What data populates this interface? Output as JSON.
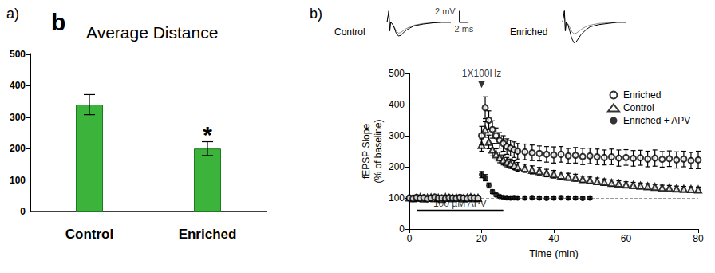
{
  "chart_data": [
    {
      "type": "bar",
      "panel": "a)",
      "tag": "b",
      "title": "Average Distance",
      "categories": [
        "Control",
        "Enriched"
      ],
      "values": [
        340,
        200
      ],
      "errors": [
        32,
        22
      ],
      "color": "#3cb43c",
      "annotations": [
        {
          "category": "Enriched",
          "text": "*"
        }
      ],
      "ylim": [
        0,
        500
      ],
      "yticks": [
        0,
        100,
        200,
        300,
        400,
        500
      ],
      "grid": false
    },
    {
      "type": "line",
      "panel": "b)",
      "x_label": "Time (min)",
      "y_label": "fEPSP Slope\n(% of baseline)",
      "xlim": [
        0,
        80
      ],
      "xticks": [
        0,
        20,
        40,
        60,
        80
      ],
      "ylim": [
        0,
        500
      ],
      "yticks": [
        0,
        100,
        200,
        300,
        400,
        500
      ],
      "grid": false,
      "legend": "top-right",
      "series": [
        {
          "name": "Enriched",
          "color": "#000000",
          "marker": "open_circle",
          "line_style": "none",
          "x": [
            0,
            1,
            2,
            3,
            4,
            5,
            6,
            7,
            8,
            9,
            10,
            11,
            12,
            13,
            14,
            15,
            16,
            17,
            18,
            19,
            20,
            21,
            22,
            23,
            24,
            25,
            26,
            27,
            28,
            29,
            30,
            32,
            34,
            36,
            38,
            40,
            42,
            44,
            46,
            48,
            50,
            52,
            54,
            56,
            58,
            60,
            62,
            64,
            66,
            68,
            70,
            72,
            74,
            76,
            78,
            80
          ],
          "values": [
            100,
            98,
            102,
            99,
            101,
            97,
            100,
            103,
            99,
            100,
            98,
            101,
            100,
            99,
            102,
            100,
            98,
            101,
            100,
            99,
            300,
            390,
            350,
            320,
            300,
            285,
            275,
            265,
            260,
            255,
            250,
            248,
            245,
            243,
            240,
            238,
            240,
            235,
            237,
            233,
            235,
            232,
            230,
            232,
            228,
            230,
            227,
            229,
            225,
            228,
            224,
            226,
            222,
            225,
            220,
            222
          ],
          "errors": [
            5,
            5,
            5,
            5,
            5,
            5,
            5,
            5,
            5,
            5,
            5,
            5,
            5,
            5,
            5,
            5,
            5,
            5,
            5,
            5,
            30,
            35,
            30,
            28,
            25,
            25,
            25,
            25,
            25,
            25,
            25,
            25,
            25,
            24,
            25,
            26,
            25,
            24,
            25,
            26,
            25,
            25,
            24,
            25,
            26,
            25,
            25,
            24,
            25,
            26,
            25,
            25,
            26,
            25,
            26,
            28
          ]
        },
        {
          "name": "Control",
          "color": "#000000",
          "marker": "open_triangle",
          "line_style": "none",
          "x": [
            0,
            1,
            2,
            3,
            4,
            5,
            6,
            7,
            8,
            9,
            10,
            11,
            12,
            13,
            14,
            15,
            16,
            17,
            18,
            19,
            20,
            21,
            22,
            23,
            24,
            25,
            26,
            27,
            28,
            29,
            30,
            32,
            34,
            36,
            38,
            40,
            42,
            44,
            46,
            48,
            50,
            52,
            54,
            56,
            58,
            60,
            62,
            64,
            66,
            68,
            70,
            72,
            74,
            76,
            78,
            80
          ],
          "values": [
            101,
            99,
            100,
            102,
            98,
            100,
            101,
            99,
            100,
            97,
            102,
            100,
            99,
            101,
            100,
            98,
            100,
            102,
            99,
            100,
            270,
            320,
            280,
            255,
            240,
            230,
            222,
            215,
            210,
            205,
            200,
            195,
            190,
            186,
            180,
            176,
            172,
            168,
            165,
            160,
            157,
            154,
            151,
            148,
            146,
            143,
            141,
            139,
            137,
            135,
            133,
            132,
            130,
            129,
            128,
            127
          ],
          "errors": [
            5,
            5,
            5,
            5,
            5,
            5,
            5,
            5,
            5,
            5,
            5,
            5,
            5,
            5,
            5,
            5,
            5,
            5,
            5,
            5,
            20,
            25,
            22,
            20,
            18,
            17,
            16,
            15,
            15,
            14,
            14,
            13,
            13,
            12,
            12,
            12,
            11,
            11,
            11,
            10,
            10,
            10,
            10,
            10,
            9,
            9,
            9,
            9,
            9,
            8,
            8,
            8,
            8,
            8,
            8,
            8
          ]
        },
        {
          "name": "Enriched + APV",
          "color": "#000000",
          "marker": "filled_circle",
          "line_style": "none",
          "x": [
            0,
            1,
            2,
            3,
            4,
            5,
            6,
            7,
            8,
            9,
            10,
            11,
            12,
            13,
            14,
            15,
            16,
            17,
            18,
            19,
            20,
            21,
            22,
            23,
            24,
            25,
            26,
            27,
            28,
            29,
            30,
            32,
            34,
            36,
            38,
            40,
            42,
            44,
            46,
            48,
            50
          ],
          "values": [
            99,
            101,
            100,
            98,
            102,
            100,
            99,
            101,
            100,
            98,
            101,
            100,
            102,
            99,
            100,
            101,
            98,
            100,
            101,
            100,
            175,
            165,
            140,
            120,
            110,
            105,
            102,
            101,
            100,
            101,
            100,
            100,
            101,
            100,
            99,
            100,
            101,
            100,
            100,
            99,
            100
          ],
          "errors": [
            4,
            4,
            4,
            4,
            4,
            4,
            4,
            4,
            4,
            4,
            4,
            4,
            4,
            4,
            4,
            4,
            4,
            4,
            4,
            4,
            10,
            10,
            8,
            6,
            5,
            4,
            4,
            4,
            4,
            4,
            4,
            4,
            4,
            4,
            4,
            4,
            4,
            4,
            4,
            4,
            4
          ]
        }
      ],
      "reference_line": {
        "y": 100,
        "line_style": "dashed"
      },
      "stimulus": {
        "label": "1X100Hz",
        "x": 20,
        "y": 465
      },
      "drug_bar": {
        "label": "100 µM APV",
        "x": [
          2,
          26
        ],
        "y": 60
      }
    },
    {
      "type": "line",
      "tick_labels": false,
      "xlim": [
        0,
        14
      ],
      "ylim": [
        -4.5,
        2.5
      ],
      "x": [
        0,
        0.4,
        0.6,
        0.8,
        1.2,
        1.6,
        2,
        2.5,
        3,
        3.5,
        4,
        5,
        6,
        8,
        10,
        12,
        14
      ],
      "panels": [
        {
          "label": "Control",
          "series": [
            {
              "color": "#8c8c8c",
              "values": [
                0,
                2,
                -1.5,
                0,
                -0.3,
                -0.8,
                -1.5,
                -1.9,
                -1.8,
                -1.5,
                -1.2,
                -0.8,
                -0.5,
                -0.2,
                -0.1,
                0,
                0
              ]
            },
            {
              "color": "#000000",
              "values": [
                0,
                2,
                -1.5,
                0,
                -0.3,
                -1.0,
                -1.9,
                -2.4,
                -2.3,
                -1.9,
                -1.5,
                -1.0,
                -0.6,
                -0.3,
                -0.1,
                0,
                0
              ]
            }
          ]
        },
        {
          "label": "Enriched",
          "series": [
            {
              "color": "#8c8c8c",
              "values": [
                0,
                2,
                -1.5,
                0,
                -0.3,
                -0.9,
                -1.6,
                -2.0,
                -1.9,
                -1.6,
                -1.3,
                -0.8,
                -0.5,
                -0.2,
                -0.1,
                0,
                0
              ]
            },
            {
              "color": "#000000",
              "values": [
                0,
                2,
                -1.5,
                0,
                -0.5,
                -1.6,
                -2.8,
                -3.6,
                -3.4,
                -2.8,
                -2.2,
                -1.4,
                -0.8,
                -0.4,
                -0.2,
                0,
                0
              ]
            }
          ]
        }
      ],
      "scale_bar": {
        "x": 2,
        "y": 2,
        "x_label": "2 ms",
        "y_label": "2 mV"
      }
    }
  ]
}
